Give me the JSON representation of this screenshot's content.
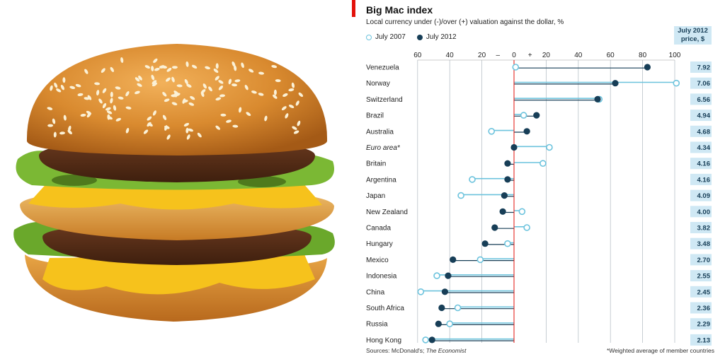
{
  "colors": {
    "accent_red": "#e3120b",
    "series_2007": "#6cc3dd",
    "series_2012": "#173e57",
    "price_box": "#cfe8f4"
  },
  "image": {
    "subject": "big-mac-burger"
  },
  "chart_data": {
    "type": "dot-range",
    "title": "Big Mac index",
    "subtitle": "Local currency under (-)/over (+) valuation against the dollar, %",
    "legend": [
      "July 2007",
      "July 2012"
    ],
    "price_header": [
      "July 2012",
      "price, $"
    ],
    "xlim": [
      -60,
      100
    ],
    "xticks": [
      "60",
      "40",
      "20",
      "–",
      "0",
      "+",
      "20",
      "40",
      "60",
      "80",
      "100"
    ],
    "grid": true,
    "categories": [
      "Venezuela",
      "Norway",
      "Switzerland",
      "Brazil",
      "Australia",
      "Euro area*",
      "Britain",
      "Argentina",
      "Japan",
      "New Zealand",
      "Canada",
      "Hungary",
      "Mexico",
      "Indonesia",
      "China",
      "South Africa",
      "Russia",
      "Hong Kong"
    ],
    "series": [
      {
        "name": "July 2007",
        "values": [
          1,
          101,
          53,
          6,
          -14,
          22,
          18,
          -26,
          -33,
          5,
          8,
          -4,
          -21,
          -48,
          -58,
          -35,
          -40,
          -55
        ]
      },
      {
        "name": "July 2012",
        "values": [
          83,
          63,
          52,
          14,
          8,
          0,
          -4,
          -4,
          -6,
          -7,
          -12,
          -18,
          -38,
          -41,
          -43,
          -45,
          -47,
          -51
        ]
      }
    ],
    "prices_2012": [
      "7.92",
      "7.06",
      "6.56",
      "4.94",
      "4.68",
      "4.34",
      "4.16",
      "4.16",
      "4.09",
      "4.00",
      "3.82",
      "3.48",
      "2.70",
      "2.55",
      "2.45",
      "2.36",
      "2.29",
      "2.13"
    ],
    "source_label": "Sources: McDonald's;",
    "source_publication": "The Economist",
    "footnote": "*Weighted average of member countries"
  }
}
